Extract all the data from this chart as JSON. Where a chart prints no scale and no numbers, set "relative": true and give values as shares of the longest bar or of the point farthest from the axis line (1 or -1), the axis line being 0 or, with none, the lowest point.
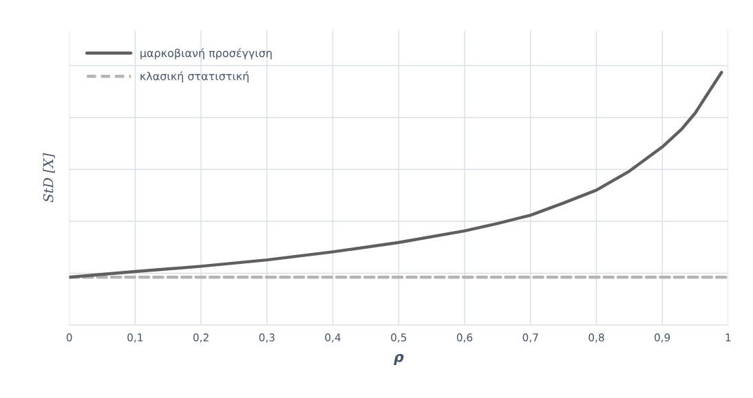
{
  "chart_data": {
    "type": "line",
    "relative": true,
    "xlabel": "ρ",
    "ylabel": "StD [X]",
    "xlim": [
      0,
      1
    ],
    "xticks": [
      0,
      {
        "value": 0.1,
        "label": "0,1"
      },
      {
        "value": 0.2,
        "label": "0,2"
      },
      {
        "value": 0.3,
        "label": "0,3"
      },
      {
        "value": 0.4,
        "label": "0,4"
      },
      {
        "value": 0.5,
        "label": "0,5"
      },
      {
        "value": 0.6,
        "label": "0,6"
      },
      {
        "value": 0.7,
        "label": "0,7"
      },
      {
        "value": 0.8,
        "label": "0,8"
      },
      {
        "value": 0.9,
        "label": "0,9"
      },
      1
    ],
    "tick_labels": "x",
    "grid": true,
    "legend": "top left",
    "series": [
      {
        "name": "μαρκοβιανή προσέγγιση",
        "color": "#5f5f5f",
        "line_style": "solid",
        "x": [
          0,
          0.1,
          0.2,
          0.3,
          0.4,
          0.5,
          0.6,
          0.65,
          0.7,
          0.75,
          0.8,
          0.85,
          0.9,
          0.93,
          0.95,
          0.97,
          0.99
        ],
        "values": [
          0.19,
          0.212,
          0.233,
          0.258,
          0.29,
          0.327,
          0.373,
          0.402,
          0.435,
          0.483,
          0.534,
          0.609,
          0.705,
          0.777,
          0.839,
          0.92,
          1
        ]
      },
      {
        "name": "κλασική στατιστική",
        "color": "#b4b4b4",
        "line_style": "dashed",
        "x": [
          0,
          1
        ],
        "values": [
          0.19,
          0.19
        ]
      }
    ]
  }
}
